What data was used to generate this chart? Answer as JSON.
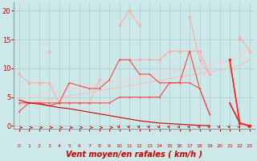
{
  "x": [
    0,
    1,
    2,
    3,
    4,
    5,
    6,
    7,
    8,
    9,
    10,
    11,
    12,
    13,
    14,
    15,
    16,
    17,
    18,
    19,
    20,
    21,
    22,
    23
  ],
  "series": [
    {
      "color": "#ffaaaa",
      "linewidth": 0.8,
      "markersize": 2.0,
      "marker": "o",
      "y": [
        9.0,
        7.5,
        null,
        13.0,
        null,
        null,
        null,
        null,
        null,
        null,
        17.5,
        20.0,
        17.5,
        null,
        null,
        13.0,
        null,
        19.0,
        11.5,
        9.0,
        null,
        null,
        15.0,
        null
      ]
    },
    {
      "color": "#ffaaaa",
      "linewidth": 0.8,
      "markersize": 2.0,
      "marker": "o",
      "y": [
        null,
        7.5,
        7.5,
        7.5,
        4.0,
        4.0,
        4.0,
        4.0,
        8.0,
        null,
        11.5,
        11.5,
        11.5,
        11.5,
        11.5,
        13.0,
        13.0,
        13.0,
        13.0,
        9.0,
        null,
        null,
        15.5,
        13.0
      ]
    },
    {
      "color": "#ffcccc",
      "linewidth": 0.8,
      "markersize": 0,
      "marker": null,
      "y": [
        4.5,
        5.0,
        5.5,
        5.8,
        6.1,
        6.4,
        6.7,
        7.0,
        7.3,
        7.6,
        7.9,
        8.2,
        8.5,
        8.8,
        9.1,
        9.4,
        9.7,
        10.0,
        10.3,
        10.6,
        10.9,
        11.2,
        12.0,
        13.5
      ]
    },
    {
      "color": "#ffbbbb",
      "linewidth": 0.8,
      "markersize": 0,
      "marker": null,
      "y": [
        3.5,
        4.0,
        4.3,
        4.6,
        4.9,
        5.2,
        5.5,
        5.8,
        6.1,
        6.4,
        6.7,
        7.0,
        7.3,
        7.6,
        7.9,
        8.2,
        8.5,
        8.8,
        9.1,
        9.4,
        9.7,
        10.0,
        10.5,
        11.5
      ]
    },
    {
      "color": "#ff4444",
      "linewidth": 0.8,
      "markersize": 1.8,
      "marker": "+",
      "y": [
        2.5,
        4.0,
        4.0,
        4.0,
        4.0,
        7.5,
        7.0,
        6.5,
        6.5,
        8.0,
        11.5,
        11.5,
        9.0,
        9.0,
        7.5,
        7.5,
        7.5,
        13.0,
        6.5,
        2.0,
        null,
        11.5,
        0.5,
        null
      ]
    },
    {
      "color": "#ff4444",
      "linewidth": 0.8,
      "markersize": 1.8,
      "marker": "+",
      "y": [
        4.0,
        4.0,
        4.0,
        3.5,
        4.0,
        4.0,
        4.0,
        4.0,
        4.0,
        4.0,
        5.0,
        5.0,
        5.0,
        5.0,
        5.0,
        7.5,
        7.5,
        7.5,
        6.5,
        2.0,
        null,
        4.0,
        0.5,
        null
      ]
    },
    {
      "color": "#cc0000",
      "linewidth": 0.8,
      "markersize": 0,
      "marker": null,
      "y": [
        4.5,
        4.0,
        3.8,
        3.5,
        3.2,
        3.0,
        2.7,
        2.4,
        2.1,
        1.8,
        1.5,
        1.2,
        0.9,
        0.7,
        0.5,
        0.4,
        0.3,
        0.2,
        0.1,
        0.05,
        null,
        null,
        null,
        null
      ]
    },
    {
      "color": "#ee2222",
      "linewidth": 1.2,
      "markersize": 0,
      "marker": null,
      "y": [
        null,
        null,
        null,
        null,
        null,
        null,
        null,
        null,
        null,
        null,
        null,
        null,
        null,
        null,
        null,
        null,
        null,
        null,
        null,
        2.0,
        null,
        4.0,
        0.5,
        0.0
      ]
    }
  ],
  "xlabel": "Vent moyen/en rafales ( km/h )",
  "xlim": [
    -0.5,
    23.5
  ],
  "ylim": [
    -0.5,
    21.5
  ],
  "yticks": [
    0,
    5,
    10,
    15,
    20
  ],
  "xticks": [
    0,
    1,
    2,
    3,
    4,
    5,
    6,
    7,
    8,
    9,
    10,
    11,
    12,
    13,
    14,
    15,
    16,
    17,
    18,
    19,
    20,
    21,
    22,
    23
  ],
  "bg_color": "#cce8e8",
  "grid_color": "#aacccc",
  "xlabel_color": "#cc0000",
  "tick_color": "#cc0000",
  "arrow_color": "#cc0000",
  "figsize": [
    3.2,
    2.0
  ],
  "dpi": 100,
  "right_series": {
    "color": "#ff2222",
    "linewidth": 1.2,
    "markersize": 2.0,
    "y_x20_22_23": [
      null,
      null,
      null,
      null,
      null,
      null,
      null,
      null,
      null,
      null,
      null,
      null,
      null,
      null,
      null,
      null,
      null,
      null,
      null,
      null,
      null,
      11.5,
      0.5,
      0.0
    ]
  }
}
